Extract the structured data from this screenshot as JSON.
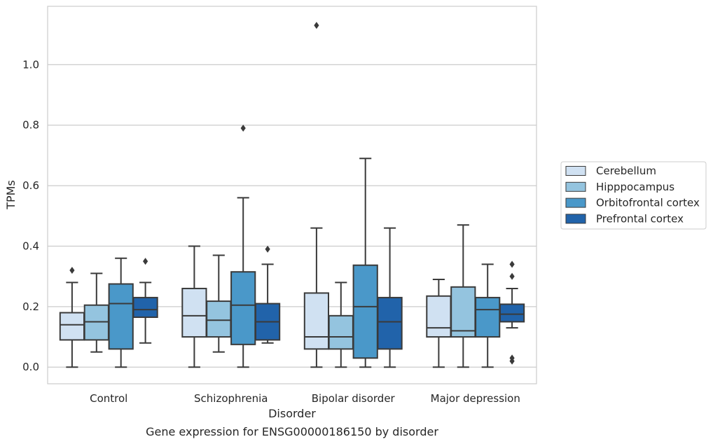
{
  "chart_data": {
    "type": "box",
    "title": "",
    "caption": "Gene expression for ENSG00000186150 by disorder",
    "xlabel": "Disorder",
    "ylabel": "TPMs",
    "ylim": [
      -0.055,
      1.193
    ],
    "yticks": [
      "0.0",
      "0.2",
      "0.4",
      "0.6",
      "0.8",
      "1.0"
    ],
    "grid": "horizontal",
    "legend_placement": "outside-right",
    "categories": [
      "Control",
      "Schizophrenia",
      "Bipolar disorder",
      "Major depression"
    ],
    "series": [
      {
        "name": "Cerebellum",
        "color": "#d0e1f2",
        "boxes": [
          {
            "whislo": 0.0,
            "q1": 0.09,
            "med": 0.14,
            "q3": 0.18,
            "whishi": 0.28,
            "fliers": [
              0.32
            ]
          },
          {
            "whislo": 0.0,
            "q1": 0.1,
            "med": 0.17,
            "q3": 0.26,
            "whishi": 0.4,
            "fliers": []
          },
          {
            "whislo": 0.0,
            "q1": 0.06,
            "med": 0.1,
            "q3": 0.245,
            "whishi": 0.46,
            "fliers": [
              1.13
            ]
          },
          {
            "whislo": 0.0,
            "q1": 0.1,
            "med": 0.13,
            "q3": 0.235,
            "whishi": 0.29,
            "fliers": []
          }
        ]
      },
      {
        "name": "Hipppocampus",
        "color": "#94c4df",
        "boxes": [
          {
            "whislo": 0.05,
            "q1": 0.09,
            "med": 0.15,
            "q3": 0.205,
            "whishi": 0.31,
            "fliers": []
          },
          {
            "whislo": 0.05,
            "q1": 0.1,
            "med": 0.155,
            "q3": 0.218,
            "whishi": 0.37,
            "fliers": []
          },
          {
            "whislo": 0.0,
            "q1": 0.06,
            "med": 0.1,
            "q3": 0.17,
            "whishi": 0.28,
            "fliers": []
          },
          {
            "whislo": 0.0,
            "q1": 0.1,
            "med": 0.12,
            "q3": 0.265,
            "whishi": 0.47,
            "fliers": []
          }
        ]
      },
      {
        "name": "Orbitofrontal cortex",
        "color": "#4a98c9",
        "boxes": [
          {
            "whislo": 0.0,
            "q1": 0.06,
            "med": 0.21,
            "q3": 0.275,
            "whishi": 0.36,
            "fliers": []
          },
          {
            "whislo": 0.0,
            "q1": 0.075,
            "med": 0.205,
            "q3": 0.315,
            "whishi": 0.56,
            "fliers": [
              0.79
            ]
          },
          {
            "whislo": 0.0,
            "q1": 0.03,
            "med": 0.2,
            "q3": 0.337,
            "whishi": 0.69,
            "fliers": []
          },
          {
            "whislo": 0.0,
            "q1": 0.1,
            "med": 0.19,
            "q3": 0.23,
            "whishi": 0.34,
            "fliers": []
          }
        ]
      },
      {
        "name": "Prefrontal cortex",
        "color": "#2163aa",
        "boxes": [
          {
            "whislo": 0.08,
            "q1": 0.165,
            "med": 0.19,
            "q3": 0.23,
            "whishi": 0.28,
            "fliers": [
              0.35
            ]
          },
          {
            "whislo": 0.08,
            "q1": 0.09,
            "med": 0.15,
            "q3": 0.21,
            "whishi": 0.34,
            "fliers": [
              0.39
            ]
          },
          {
            "whislo": 0.0,
            "q1": 0.06,
            "med": 0.15,
            "q3": 0.23,
            "whishi": 0.46,
            "fliers": []
          },
          {
            "whislo": 0.13,
            "q1": 0.15,
            "med": 0.175,
            "q3": 0.208,
            "whishi": 0.26,
            "fliers": [
              0.34,
              0.3,
              0.03,
              0.02
            ]
          }
        ]
      }
    ]
  }
}
